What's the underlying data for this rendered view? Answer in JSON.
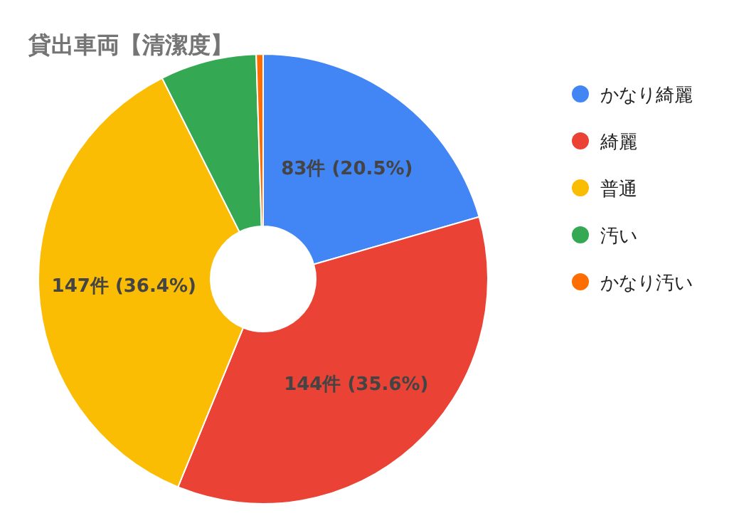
{
  "chart_data": {
    "type": "donut",
    "title": "貸出車両【清潔度】",
    "categories": [
      "かなり綺麗",
      "綺麗",
      "普通",
      "汚い",
      "かなり汚い"
    ],
    "values": [
      83,
      144,
      147,
      28,
      2
    ],
    "colors": [
      "#4285f4",
      "#ea4335",
      "#fbbc04",
      "#34a853",
      "#ff6d01"
    ],
    "value_labels": [
      "83件 (20.5%)",
      "144件 (35.6%)",
      "147件 (36.4%)",
      null,
      null
    ],
    "legend": "right"
  }
}
